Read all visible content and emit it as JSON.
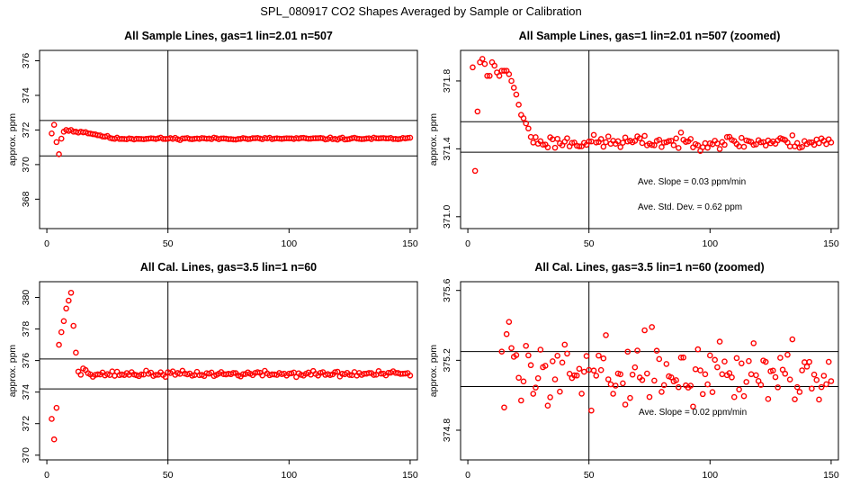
{
  "figure_title": "SPL_080917  CO2 Shapes Averaged by Sample or Calibration",
  "chart_data": [
    {
      "type": "scatter",
      "title": "All Sample Lines, gas=1 lin=2.01 n=507",
      "xlabel": "",
      "ylabel": "approx. ppm",
      "xlim": [
        -3,
        153
      ],
      "ylim": [
        366.3,
        376.6
      ],
      "xticks": [
        0,
        50,
        100,
        150
      ],
      "yticks": [
        368,
        370,
        372,
        374,
        376
      ],
      "hlines": [
        372.55,
        370.5
      ],
      "vlines": [
        50
      ],
      "marker_color": "#ff0000",
      "annotations": [],
      "early_points": [
        [
          2,
          371.8
        ],
        [
          3,
          372.3
        ],
        [
          4,
          371.3
        ],
        [
          5,
          370.6
        ],
        [
          6,
          371.5
        ],
        [
          7,
          371.9
        ],
        [
          8,
          372.0
        ],
        [
          9,
          371.95
        ],
        [
          10,
          372.0
        ],
        [
          11,
          371.9
        ],
        [
          12,
          371.9
        ],
        [
          13,
          371.85
        ],
        [
          14,
          371.9
        ]
      ],
      "trend": {
        "from_x": 15,
        "to_x": 150,
        "start": 371.9,
        "settle_x": 28,
        "base": 371.5,
        "noise": 0.03,
        "seed": 11
      }
    },
    {
      "type": "scatter",
      "title": "All Sample Lines, gas=1 lin=2.01 n=507 (zoomed)",
      "xlabel": "",
      "ylabel": "approx. ppm",
      "xlim": [
        -3,
        153
      ],
      "ylim": [
        370.93,
        371.98
      ],
      "xticks": [
        0,
        50,
        100,
        150
      ],
      "yticks": [
        371.0,
        371.4,
        371.8
      ],
      "hlines": [
        371.56,
        371.38
      ],
      "vlines": [
        50
      ],
      "marker_color": "#ff0000",
      "annotations": [
        "Ave. Slope =  0.03  ppm/min",
        "Ave. Std. Dev. =  0.62  ppm"
      ],
      "early_points": [
        [
          2,
          371.88
        ],
        [
          3,
          371.27
        ],
        [
          4,
          371.62
        ],
        [
          5,
          371.91
        ],
        [
          6,
          371.93
        ],
        [
          7,
          371.9
        ],
        [
          8,
          371.83
        ],
        [
          9,
          371.83
        ],
        [
          10,
          371.91
        ],
        [
          11,
          371.89
        ],
        [
          12,
          371.85
        ],
        [
          13,
          371.83
        ],
        [
          14,
          371.86
        ],
        [
          15,
          371.86
        ],
        [
          16,
          371.86
        ],
        [
          17,
          371.84
        ],
        [
          18,
          371.8
        ],
        [
          19,
          371.76
        ],
        [
          20,
          371.72
        ],
        [
          21,
          371.66
        ],
        [
          22,
          371.6
        ],
        [
          23,
          371.58
        ],
        [
          24,
          371.55
        ],
        [
          25,
          371.52
        ],
        [
          26,
          371.47
        ]
      ],
      "trend": {
        "from_x": 27,
        "to_x": 150,
        "start": 371.45,
        "settle_x": 30,
        "base": 371.44,
        "noise": 0.02,
        "seed": 23
      }
    },
    {
      "type": "scatter",
      "title": "All Cal. Lines, gas=3.5 lin=1 n=60",
      "xlabel": "",
      "ylabel": "approx. ppm",
      "xlim": [
        -3,
        153
      ],
      "ylim": [
        369.7,
        381.0
      ],
      "xticks": [
        0,
        50,
        100,
        150
      ],
      "yticks": [
        370,
        372,
        374,
        376,
        378,
        380
      ],
      "hlines": [
        376.1,
        374.2
      ],
      "vlines": [
        50
      ],
      "marker_color": "#ff0000",
      "annotations": [],
      "early_points": [
        [
          2,
          372.3
        ],
        [
          3,
          371.0
        ],
        [
          4,
          373.0
        ],
        [
          5,
          377.0
        ],
        [
          6,
          377.8
        ],
        [
          7,
          378.5
        ],
        [
          8,
          379.3
        ],
        [
          9,
          379.8
        ],
        [
          10,
          380.3
        ],
        [
          11,
          378.2
        ],
        [
          12,
          376.5
        ],
        [
          13,
          375.3
        ],
        [
          14,
          375.1
        ],
        [
          15,
          375.5
        ],
        [
          16,
          375.4
        ],
        [
          17,
          375.2
        ]
      ],
      "trend": {
        "from_x": 18,
        "to_x": 150,
        "start": 375.2,
        "settle_x": 20,
        "base": 375.15,
        "noise": 0.09,
        "seed": 37
      }
    },
    {
      "type": "scatter",
      "title": "All Cal. Lines, gas=3.5 lin=1 n=60 (zoomed)",
      "xlabel": "",
      "ylabel": "approx. ppm",
      "xlim": [
        -3,
        153
      ],
      "ylim": [
        374.63,
        375.65
      ],
      "xticks": [
        0,
        50,
        100,
        150
      ],
      "yticks": [
        374.8,
        375.2,
        375.6
      ],
      "hlines": [
        375.25,
        375.05
      ],
      "vlines": [
        50
      ],
      "marker_color": "#ff0000",
      "annotations": [
        "Ave. Slope =  0.02  ppm/min"
      ],
      "early_points": [
        [
          14,
          375.25
        ],
        [
          15,
          374.93
        ],
        [
          16,
          375.35
        ],
        [
          17,
          375.42
        ],
        [
          18,
          375.27
        ],
        [
          19,
          375.22
        ],
        [
          20,
          375.23
        ],
        [
          21,
          375.1
        ],
        [
          22,
          374.97
        ]
      ],
      "trend": {
        "from_x": 23,
        "to_x": 150,
        "start": 375.15,
        "settle_x": 24,
        "base": 375.14,
        "noise": 0.09,
        "seed": 59
      }
    }
  ]
}
